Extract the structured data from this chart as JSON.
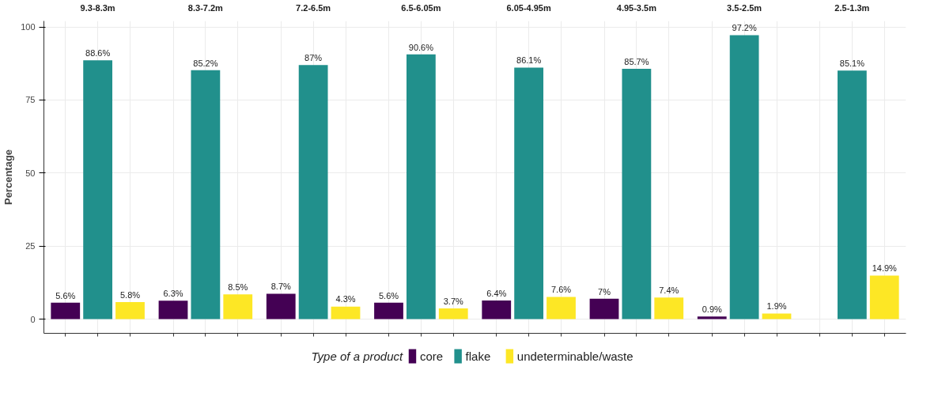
{
  "chart_data": {
    "type": "bar",
    "ylabel": "Percentage",
    "legend_title": "Type of a product",
    "legend": "bottom",
    "categories": [
      "9.3-8.3m",
      "8.3-7.2m",
      "7.2-6.5m",
      "6.5-6.05m",
      "6.05-4.95m",
      "4.95-3.5m",
      "3.5-2.5m",
      "2.5-1.3m"
    ],
    "ylim": [
      -4.86,
      102.06
    ],
    "yticks": [
      0,
      25,
      50,
      75,
      100
    ],
    "grid": true,
    "series": [
      {
        "name": "core",
        "color": "#440154",
        "values": [
          5.6,
          6.3,
          8.7,
          5.6,
          6.4,
          7,
          0.9,
          null
        ],
        "value_labels": [
          "5.6%",
          "6.3%",
          "8.7%",
          "5.6%",
          "6.4%",
          "7%",
          "0.9%",
          null
        ]
      },
      {
        "name": "flake",
        "color": "#21908c",
        "values": [
          88.6,
          85.2,
          87,
          90.6,
          86.1,
          85.7,
          97.2,
          85.1
        ],
        "value_labels": [
          "88.6%",
          "85.2%",
          "87%",
          "90.6%",
          "86.1%",
          "85.7%",
          "97.2%",
          "85.1%"
        ]
      },
      {
        "name": "undeterminable/waste",
        "color": "#fde725",
        "values": [
          5.8,
          8.5,
          4.3,
          3.7,
          7.6,
          7.4,
          1.9,
          14.9
        ],
        "value_labels": [
          "5.8%",
          "8.5%",
          "4.3%",
          "3.7%",
          "7.6%",
          "7.4%",
          "1.9%",
          "14.9%"
        ]
      }
    ]
  }
}
